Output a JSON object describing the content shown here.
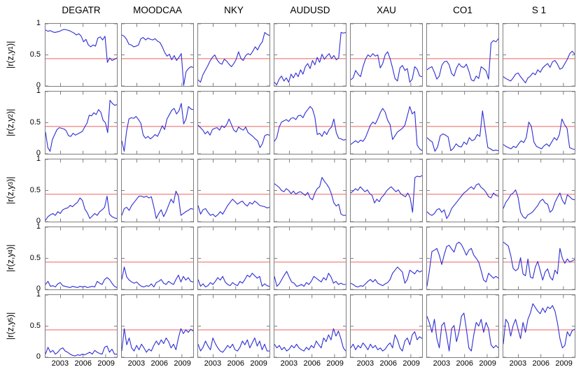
{
  "figure": {
    "description": "Grid of rolling absolute correlation time series |r(z,y_k)| for seven instruments, with red threshold line",
    "background": "#ffffff"
  },
  "chart_data": {
    "type": "line",
    "layout": {
      "grid_rows": 5,
      "grid_cols": 7,
      "legend": "none",
      "gridlines": "off",
      "frame_color": "#7e7e7e"
    },
    "columns": [
      "DEGATR",
      "MOODCAA",
      "NKY",
      "AUDUSD",
      "XAU",
      "CO1",
      "S 1"
    ],
    "row_labels": [
      {
        "main": "|r(z,y",
        "sub": "1",
        "close": ")|"
      },
      {
        "main": "|r(z,y",
        "sub": "2",
        "close": ")|"
      },
      {
        "main": "|r(z,y",
        "sub": "3",
        "close": ")|"
      },
      {
        "main": "|r(z,y",
        "sub": "4",
        "close": ")|"
      },
      {
        "main": "|r(z,y",
        "sub": "5",
        "close": ")|"
      }
    ],
    "x_range": [
      2001,
      2010.5
    ],
    "x_ticks": {
      "labels": [
        "2003",
        "2006",
        "2009"
      ],
      "values": [
        2003,
        2006,
        2009
      ],
      "fractions": [
        0.2105,
        0.5263,
        0.8421
      ]
    },
    "y_range": [
      0,
      1
    ],
    "y_ticks": {
      "labels": [
        "1",
        "0.5",
        "0"
      ],
      "values": [
        1,
        0.5,
        0
      ]
    },
    "threshold": {
      "value": 0.44,
      "color": "#f08080"
    },
    "line_color": "#2d2dd4",
    "series": [
      [
        [
          0.9,
          0.88,
          0.89,
          0.87,
          0.86,
          0.87,
          0.88,
          0.9,
          0.91,
          0.9,
          0.89,
          0.87,
          0.85,
          0.82,
          0.84,
          0.8,
          0.71,
          0.75,
          0.66,
          0.63,
          0.66,
          0.64,
          0.77,
          0.79,
          0.74,
          0.8,
          0.38,
          0.45,
          0.41,
          0.43,
          0.45
        ],
        [
          0.82,
          0.8,
          0.75,
          0.67,
          0.66,
          0.63,
          0.64,
          0.66,
          0.76,
          0.78,
          0.74,
          0.77,
          0.75,
          0.74,
          0.76,
          0.72,
          0.7,
          0.63,
          0.54,
          0.48,
          0.51,
          0.42,
          0.49,
          0.41,
          0.46,
          0.52,
          0.01,
          0.23,
          0.28,
          0.31,
          0.3
        ],
        [
          0.1,
          0.06,
          0.18,
          0.25,
          0.32,
          0.4,
          0.46,
          0.5,
          0.42,
          0.37,
          0.35,
          0.43,
          0.4,
          0.35,
          0.31,
          0.36,
          0.43,
          0.55,
          0.44,
          0.41,
          0.49,
          0.52,
          0.5,
          0.56,
          0.63,
          0.58,
          0.66,
          0.71,
          0.86,
          0.83,
          0.81
        ],
        [
          0.06,
          0.02,
          0.11,
          0.16,
          0.08,
          0.13,
          0.06,
          0.19,
          0.13,
          0.21,
          0.15,
          0.26,
          0.19,
          0.31,
          0.36,
          0.28,
          0.41,
          0.34,
          0.46,
          0.38,
          0.51,
          0.43,
          0.48,
          0.52,
          0.44,
          0.49,
          0.42,
          0.45,
          0.86,
          0.85,
          0.86
        ],
        [
          0.1,
          0.13,
          0.25,
          0.19,
          0.15,
          0.31,
          0.43,
          0.5,
          0.47,
          0.52,
          0.48,
          0.5,
          0.29,
          0.36,
          0.5,
          0.55,
          0.44,
          0.29,
          0.12,
          0.08,
          0.29,
          0.33,
          0.25,
          0.28,
          0.06,
          0.11,
          0.31,
          0.27,
          0.16,
          0.15
        ],
        [
          0.26,
          0.29,
          0.31,
          0.22,
          0.11,
          0.16,
          0.33,
          0.39,
          0.4,
          0.34,
          0.2,
          0.16,
          0.29,
          0.36,
          0.31,
          0.3,
          0.35,
          0.24,
          0.1,
          0.08,
          0.16,
          0.12,
          0.31,
          0.28,
          0.24,
          0.11,
          0.69,
          0.73,
          0.71,
          0.76
        ],
        [
          0.15,
          0.12,
          0.1,
          0.08,
          0.13,
          0.19,
          0.21,
          0.15,
          0.1,
          0.05,
          0.13,
          0.16,
          0.21,
          0.18,
          0.26,
          0.22,
          0.29,
          0.33,
          0.36,
          0.3,
          0.39,
          0.41,
          0.35,
          0.27,
          0.29,
          0.36,
          0.43,
          0.52,
          0.56,
          0.51
        ]
      ],
      [
        [
          0.35,
          0.1,
          0.04,
          0.23,
          0.31,
          0.39,
          0.42,
          0.41,
          0.4,
          0.37,
          0.29,
          0.28,
          0.33,
          0.3,
          0.32,
          0.34,
          0.36,
          0.43,
          0.49,
          0.62,
          0.61,
          0.66,
          0.63,
          0.71,
          0.67,
          0.54,
          0.5,
          0.34,
          0.86,
          0.81,
          0.78,
          0.79
        ],
        [
          0.21,
          0.04,
          0.36,
          0.56,
          0.58,
          0.57,
          0.6,
          0.55,
          0.49,
          0.3,
          0.25,
          0.28,
          0.24,
          0.27,
          0.31,
          0.28,
          0.36,
          0.45,
          0.39,
          0.56,
          0.63,
          0.7,
          0.73,
          0.64,
          0.69,
          0.81,
          0.48,
          0.56,
          0.76,
          0.72,
          0.71
        ],
        [
          0.46,
          0.42,
          0.38,
          0.32,
          0.36,
          0.3,
          0.39,
          0.41,
          0.42,
          0.38,
          0.45,
          0.42,
          0.47,
          0.56,
          0.47,
          0.38,
          0.35,
          0.43,
          0.4,
          0.38,
          0.43,
          0.34,
          0.31,
          0.28,
          0.24,
          0.21,
          0.1,
          0.16,
          0.29,
          0.31,
          0.3
        ],
        [
          0.2,
          0.26,
          0.43,
          0.51,
          0.53,
          0.55,
          0.52,
          0.57,
          0.58,
          0.55,
          0.61,
          0.62,
          0.58,
          0.66,
          0.71,
          0.76,
          0.72,
          0.59,
          0.31,
          0.33,
          0.28,
          0.36,
          0.31,
          0.39,
          0.43,
          0.56,
          0.34,
          0.25,
          0.24,
          0.22,
          0.23
        ],
        [
          0.15,
          0.18,
          0.21,
          0.18,
          0.22,
          0.2,
          0.26,
          0.36,
          0.46,
          0.51,
          0.48,
          0.56,
          0.66,
          0.73,
          0.67,
          0.54,
          0.47,
          0.23,
          0.29,
          0.35,
          0.38,
          0.41,
          0.46,
          0.61,
          0.76,
          0.64,
          0.68,
          0.14,
          0.08,
          0.05
        ],
        [
          0.26,
          0.22,
          0.19,
          0.04,
          0.11,
          0.29,
          0.32,
          0.3,
          0.27,
          0.05,
          0.09,
          0.16,
          0.12,
          0.11,
          0.19,
          0.15,
          0.26,
          0.21,
          0.23,
          0.31,
          0.28,
          0.69,
          0.39,
          0.1,
          0.08,
          0.05,
          0.06,
          0.05
        ],
        [
          0.15,
          0.12,
          0.1,
          0.08,
          0.12,
          0.1,
          0.16,
          0.21,
          0.18,
          0.26,
          0.51,
          0.44,
          0.19,
          0.12,
          0.1,
          0.08,
          0.13,
          0.16,
          0.12,
          0.19,
          0.26,
          0.22,
          0.31,
          0.56,
          0.47,
          0.41,
          0.1,
          0.08,
          0.07
        ]
      ],
      [
        [
          0.02,
          0.08,
          0.11,
          0.13,
          0.1,
          0.16,
          0.13,
          0.19,
          0.21,
          0.22,
          0.26,
          0.24,
          0.28,
          0.31,
          0.38,
          0.34,
          0.2,
          0.14,
          0.05,
          0.09,
          0.13,
          0.1,
          0.16,
          0.19,
          0.23,
          0.41,
          0.12,
          0.08,
          0.06,
          0.05
        ],
        [
          0.1,
          0.21,
          0.23,
          0.18,
          0.26,
          0.31,
          0.36,
          0.41,
          0.41,
          0.39,
          0.41,
          0.38,
          0.4,
          0.24,
          0.05,
          0.13,
          0.19,
          0.08,
          0.16,
          0.26,
          0.36,
          0.3,
          0.49,
          0.41,
          0.1,
          0.13,
          0.16,
          0.18,
          0.21,
          0.2
        ],
        [
          0.26,
          0.12,
          0.19,
          0.21,
          0.15,
          0.1,
          0.12,
          0.08,
          0.11,
          0.16,
          0.12,
          0.19,
          0.26,
          0.31,
          0.36,
          0.32,
          0.28,
          0.31,
          0.33,
          0.28,
          0.25,
          0.31,
          0.28,
          0.33,
          0.3,
          0.26,
          0.25,
          0.24,
          0.22,
          0.23
        ],
        [
          0.61,
          0.58,
          0.55,
          0.5,
          0.48,
          0.53,
          0.5,
          0.45,
          0.49,
          0.44,
          0.47,
          0.48,
          0.45,
          0.42,
          0.47,
          0.38,
          0.35,
          0.46,
          0.53,
          0.56,
          0.71,
          0.65,
          0.6,
          0.54,
          0.44,
          0.3,
          0.25,
          0.28,
          0.12,
          0.1,
          0.1
        ],
        [
          0.46,
          0.49,
          0.53,
          0.5,
          0.56,
          0.52,
          0.48,
          0.51,
          0.45,
          0.42,
          0.3,
          0.36,
          0.32,
          0.39,
          0.43,
          0.49,
          0.53,
          0.56,
          0.52,
          0.48,
          0.51,
          0.45,
          0.42,
          0.4,
          0.46,
          0.38,
          0.15,
          0.71,
          0.73,
          0.72,
          0.74
        ],
        [
          0.16,
          0.12,
          0.1,
          0.13,
          0.19,
          0.21,
          0.15,
          0.19,
          0.05,
          0.11,
          0.21,
          0.26,
          0.31,
          0.36,
          0.41,
          0.46,
          0.49,
          0.53,
          0.56,
          0.52,
          0.59,
          0.61,
          0.55,
          0.52,
          0.47,
          0.4,
          0.38,
          0.46,
          0.42,
          0.41
        ],
        [
          0.21,
          0.31,
          0.36,
          0.43,
          0.46,
          0.51,
          0.39,
          0.15,
          0.08,
          0.05,
          0.11,
          0.13,
          0.16,
          0.21,
          0.26,
          0.33,
          0.36,
          0.3,
          0.28,
          0.15,
          0.19,
          0.31,
          0.39,
          0.46,
          0.34,
          0.28,
          0.43,
          0.4,
          0.36,
          0.35
        ]
      ],
      [
        [
          0.08,
          0.13,
          0.05,
          0.06,
          0.04,
          0.09,
          0.11,
          0.06,
          0.05,
          0.04,
          0.03,
          0.05,
          0.04,
          0.03,
          0.05,
          0.04,
          0.05,
          0.03,
          0.04,
          0.05,
          0.04,
          0.13,
          0.1,
          0.08,
          0.16,
          0.19,
          0.16,
          0.1,
          0.05,
          0.03
        ],
        [
          0.16,
          0.36,
          0.2,
          0.15,
          0.12,
          0.1,
          0.12,
          0.08,
          0.05,
          0.04,
          0.06,
          0.05,
          0.09,
          0.04,
          0.11,
          0.13,
          0.16,
          0.1,
          0.08,
          0.13,
          0.1,
          0.08,
          0.16,
          0.23,
          0.12,
          0.21,
          0.15,
          0.19,
          0.13,
          0.12
        ],
        [
          0.16,
          0.05,
          0.09,
          0.04,
          0.06,
          0.11,
          0.08,
          0.13,
          0.19,
          0.15,
          0.21,
          0.12,
          0.08,
          0.06,
          0.11,
          0.08,
          0.06,
          0.13,
          0.1,
          0.16,
          0.23,
          0.2,
          0.26,
          0.22,
          0.18,
          0.21,
          0.05,
          0.09,
          0.06,
          0.05
        ],
        [
          0.21,
          0.05,
          0.09,
          0.16,
          0.23,
          0.29,
          0.2,
          0.12,
          0.1,
          0.05,
          0.06,
          0.08,
          0.05,
          0.11,
          0.08,
          0.13,
          0.21,
          0.18,
          0.15,
          0.12,
          0.19,
          0.15,
          0.26,
          0.2,
          0.1,
          0.13,
          0.08,
          0.1,
          0.08,
          0.08
        ],
        [
          0.1,
          0.08,
          0.05,
          0.04,
          0.06,
          0.05,
          0.09,
          0.13,
          0.16,
          0.12,
          0.16,
          0.1,
          0.08,
          0.06,
          0.09,
          0.11,
          0.16,
          0.26,
          0.31,
          0.36,
          0.32,
          0.28,
          0.1,
          0.16,
          0.31,
          0.28,
          0.25,
          0.31,
          0.28,
          0.3
        ],
        [
          0.05,
          0.31,
          0.61,
          0.63,
          0.66,
          0.55,
          0.4,
          0.56,
          0.69,
          0.71,
          0.65,
          0.6,
          0.73,
          0.76,
          0.72,
          0.64,
          0.55,
          0.63,
          0.66,
          0.55,
          0.5,
          0.44,
          0.3,
          0.15,
          0.12,
          0.26,
          0.22,
          0.18,
          0.21,
          0.18
        ],
        [
          0.76,
          0.73,
          0.7,
          0.55,
          0.34,
          0.3,
          0.33,
          0.51,
          0.25,
          0.22,
          0.49,
          0.2,
          0.18,
          0.36,
          0.45,
          0.3,
          0.15,
          0.28,
          0.33,
          0.2,
          0.15,
          0.31,
          0.25,
          0.66,
          0.5,
          0.42,
          0.49,
          0.44,
          0.46,
          0.48
        ]
      ],
      [
        [
          0.05,
          0.16,
          0.08,
          0.11,
          0.05,
          0.08,
          0.13,
          0.15,
          0.1,
          0.08,
          0.05,
          0.03,
          0.02,
          0.04,
          0.03,
          0.05,
          0.04,
          0.06,
          0.08,
          0.05,
          0.11,
          0.08,
          0.06,
          0.05,
          0.16,
          0.18,
          0.08,
          0.13,
          0.05,
          0.05
        ],
        [
          0.1,
          0.46,
          0.2,
          0.31,
          0.15,
          0.1,
          0.19,
          0.12,
          0.21,
          0.15,
          0.08,
          0.13,
          0.1,
          0.19,
          0.26,
          0.2,
          0.28,
          0.22,
          0.31,
          0.25,
          0.15,
          0.21,
          0.12,
          0.31,
          0.46,
          0.38,
          0.44,
          0.4,
          0.45,
          0.42
        ],
        [
          0.21,
          0.1,
          0.16,
          0.26,
          0.18,
          0.12,
          0.31,
          0.22,
          0.15,
          0.1,
          0.08,
          0.13,
          0.19,
          0.15,
          0.21,
          0.12,
          0.1,
          0.16,
          0.26,
          0.2,
          0.28,
          0.15,
          0.23,
          0.31,
          0.18,
          0.26,
          0.12,
          0.21,
          0.1,
          0.1
        ],
        [
          0.21,
          0.15,
          0.19,
          0.12,
          0.16,
          0.1,
          0.13,
          0.19,
          0.15,
          0.21,
          0.15,
          0.12,
          0.1,
          0.16,
          0.12,
          0.19,
          0.15,
          0.26,
          0.2,
          0.15,
          0.31,
          0.25,
          0.36,
          0.28,
          0.46,
          0.34,
          0.42,
          0.3,
          0.15,
          0.1
        ],
        [
          0.15,
          0.21,
          0.12,
          0.19,
          0.15,
          0.23,
          0.18,
          0.12,
          0.21,
          0.15,
          0.19,
          0.12,
          0.15,
          0.1,
          0.13,
          0.19,
          0.23,
          0.15,
          0.36,
          0.28,
          0.15,
          0.1,
          0.26,
          0.31,
          0.2,
          0.36,
          0.41,
          0.28,
          0.33,
          0.3
        ],
        [
          0.66,
          0.55,
          0.4,
          0.61,
          0.3,
          0.15,
          0.51,
          0.56,
          0.34,
          0.1,
          0.46,
          0.51,
          0.25,
          0.41,
          0.66,
          0.71,
          0.45,
          0.15,
          0.1,
          0.36,
          0.56,
          0.5,
          0.61,
          0.4,
          0.56,
          0.46,
          0.2,
          0.15,
          0.19,
          0.15
        ],
        [
          0.21,
          0.61,
          0.55,
          0.34,
          0.51,
          0.61,
          0.45,
          0.3,
          0.56,
          0.4,
          0.61,
          0.71,
          0.86,
          0.8,
          0.74,
          0.7,
          0.79,
          0.72,
          0.81,
          0.78,
          0.83,
          0.74,
          0.55,
          0.3,
          0.15,
          0.19,
          0.41,
          0.34,
          0.43,
          0.45
        ]
      ]
    ]
  }
}
